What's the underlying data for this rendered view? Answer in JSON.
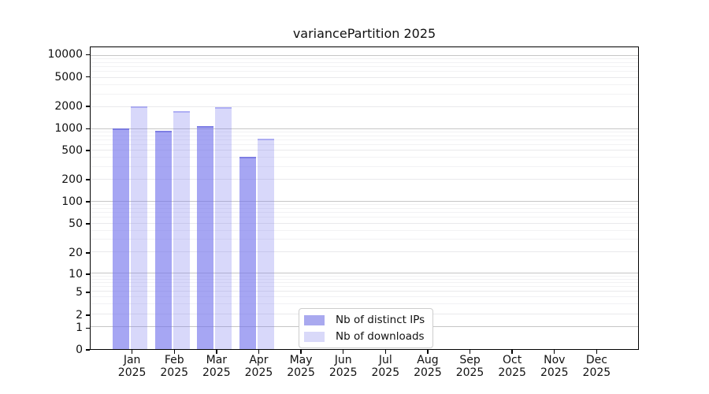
{
  "chart_data": {
    "type": "bar",
    "title": "variancePartition 2025",
    "scale": "symlog",
    "grid": true,
    "legend_position": "lower center",
    "categories": [
      {
        "month": "Jan",
        "year": "2025"
      },
      {
        "month": "Feb",
        "year": "2025"
      },
      {
        "month": "Mar",
        "year": "2025"
      },
      {
        "month": "Apr",
        "year": "2025"
      },
      {
        "month": "May",
        "year": "2025"
      },
      {
        "month": "Jun",
        "year": "2025"
      },
      {
        "month": "Jul",
        "year": "2025"
      },
      {
        "month": "Aug",
        "year": "2025"
      },
      {
        "month": "Sep",
        "year": "2025"
      },
      {
        "month": "Oct",
        "year": "2025"
      },
      {
        "month": "Nov",
        "year": "2025"
      },
      {
        "month": "Dec",
        "year": "2025"
      }
    ],
    "series": [
      {
        "name": "Nb of distinct IPs",
        "fill": "rgba(116,116,236,0.64)",
        "edge": "rgba(95,95,215,0.55)",
        "swatch": "#a9a9ef",
        "values": [
          1050,
          960,
          1120,
          425,
          null,
          null,
          null,
          null,
          null,
          null,
          null,
          null
        ]
      },
      {
        "name": "Nb of downloads",
        "fill": "rgba(116,116,236,0.28)",
        "edge": "rgba(116,116,236,0.40)",
        "swatch": "#d9d9f9",
        "values": [
          2080,
          1800,
          2030,
          750,
          null,
          null,
          null,
          null,
          null,
          null,
          null,
          null
        ]
      }
    ],
    "y_axis": {
      "ticks": [
        {
          "value": 10000,
          "label": "10000"
        },
        {
          "value": 5000,
          "label": "5000"
        },
        {
          "value": 2000,
          "label": "2000"
        },
        {
          "value": 1000,
          "label": "1000"
        },
        {
          "value": 500,
          "label": "500"
        },
        {
          "value": 200,
          "label": "200"
        },
        {
          "value": 100,
          "label": "100"
        },
        {
          "value": 50,
          "label": "50"
        },
        {
          "value": 20,
          "label": "20"
        },
        {
          "value": 10,
          "label": "10"
        },
        {
          "value": 5,
          "label": "5"
        },
        {
          "value": 2,
          "label": "2"
        },
        {
          "value": 1,
          "label": "1"
        },
        {
          "value": 0,
          "label": "0"
        }
      ],
      "ylim": [
        0,
        12500
      ]
    }
  }
}
